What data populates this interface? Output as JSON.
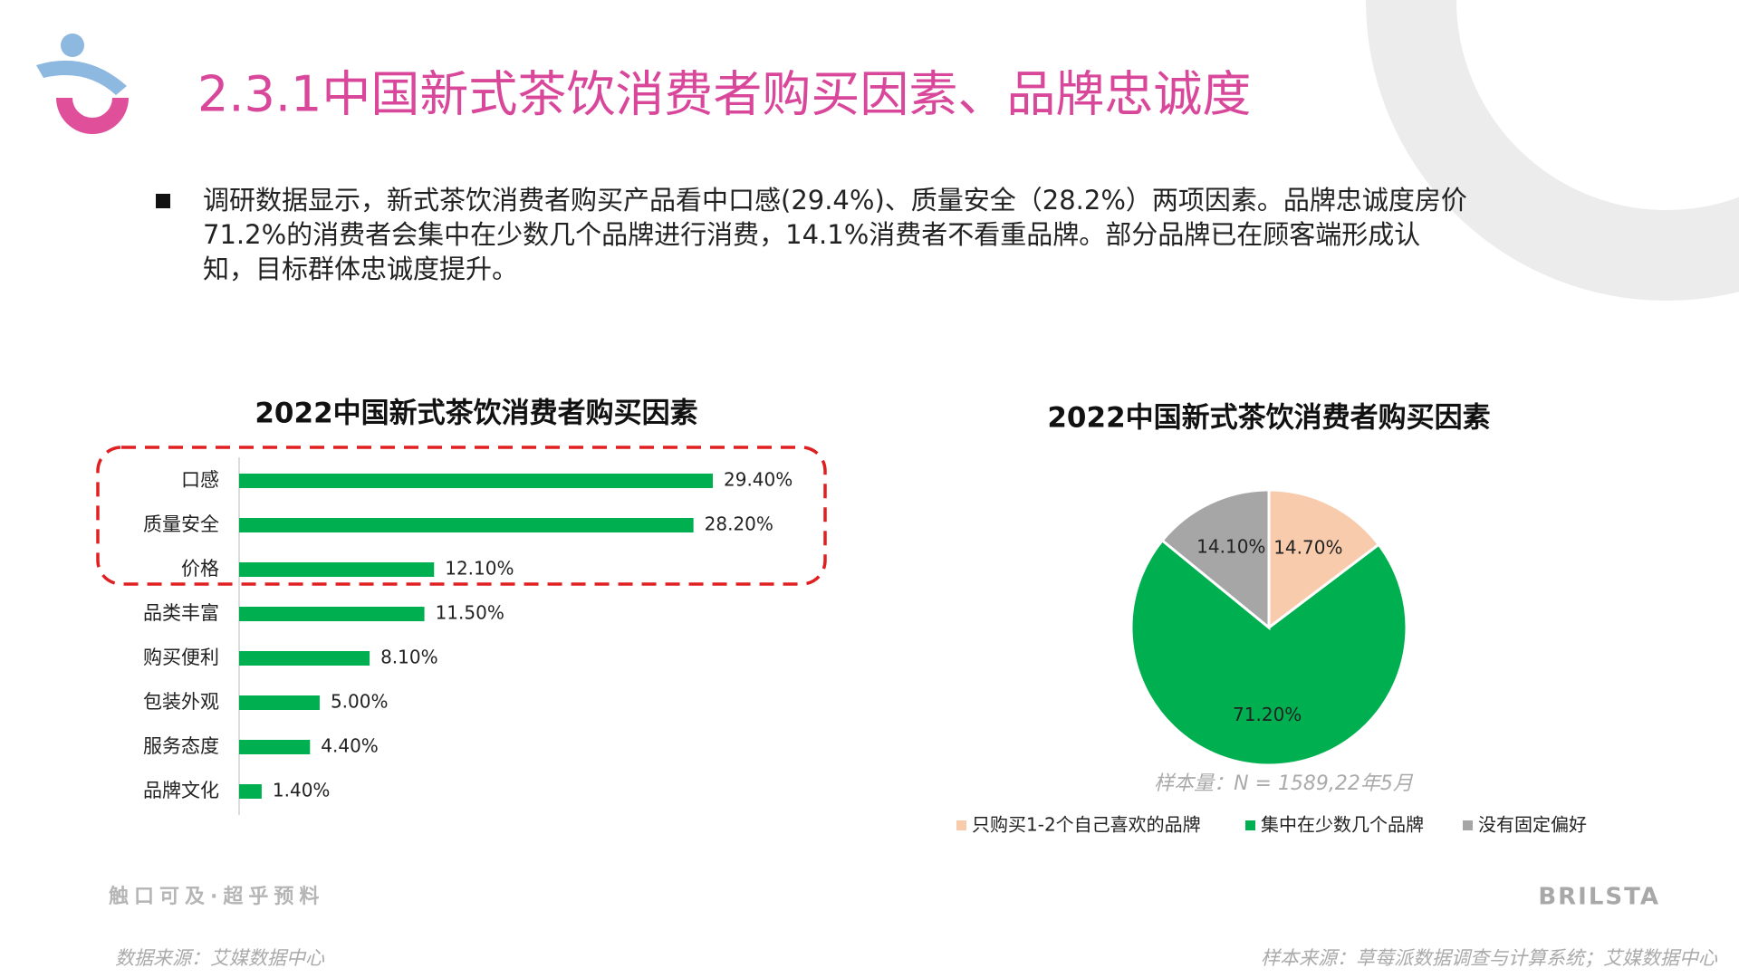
{
  "header": {
    "title": "2.3.1中国新式茶饮消费者购买因素、品牌忠诚度"
  },
  "text": "调研数据显示，新式茶饮消费者购买产品看中口感(29.4%)、质量安全（28.2%）两项因素。品牌忠诚度房价71.2%的消费者会集中在少数几个品牌进行消费，14.1%消费者不看重品牌。部分品牌已在顾客端形成认知，目标群体忠诚度提升。",
  "chart_data": [
    {
      "type": "bar",
      "orientation": "horizontal",
      "title": "2022中国新式茶饮消费者购买因素",
      "categories": [
        "口感",
        "质量安全",
        "价格",
        "品类丰富",
        "购买便利",
        "包装外观",
        "服务态度",
        "品牌文化"
      ],
      "values": [
        29.4,
        28.2,
        12.1,
        11.5,
        8.1,
        5.0,
        4.4,
        1.4
      ],
      "value_labels": [
        "29.40%",
        "28.20%",
        "12.10%",
        "11.50%",
        "8.10%",
        "5.00%",
        "4.40%",
        "1.40%"
      ],
      "color": "#00b050"
    },
    {
      "type": "pie",
      "title": "2022中国新式茶饮消费者购买因素",
      "categories": [
        "只购买1-2个自己喜欢的品牌",
        "集中在少数几个品牌",
        "没有固定偏好"
      ],
      "values": [
        14.7,
        71.2,
        14.1
      ],
      "value_labels": [
        "14.70%",
        "71.20%",
        "14.10%"
      ],
      "colors": [
        "#f8cbad",
        "#00b050",
        "#a6a6a6"
      ],
      "annotation": "样本量：N = 1589,22年5月",
      "legend": "bottom"
    }
  ],
  "footer": {
    "slogan": "触口可及·超乎预料",
    "brand": "BRILSTA",
    "source_left": "数据来源：艾媒数据中心",
    "source_right": "样本来源：草莓派数据调查与计算系统；艾媒数据中心"
  }
}
